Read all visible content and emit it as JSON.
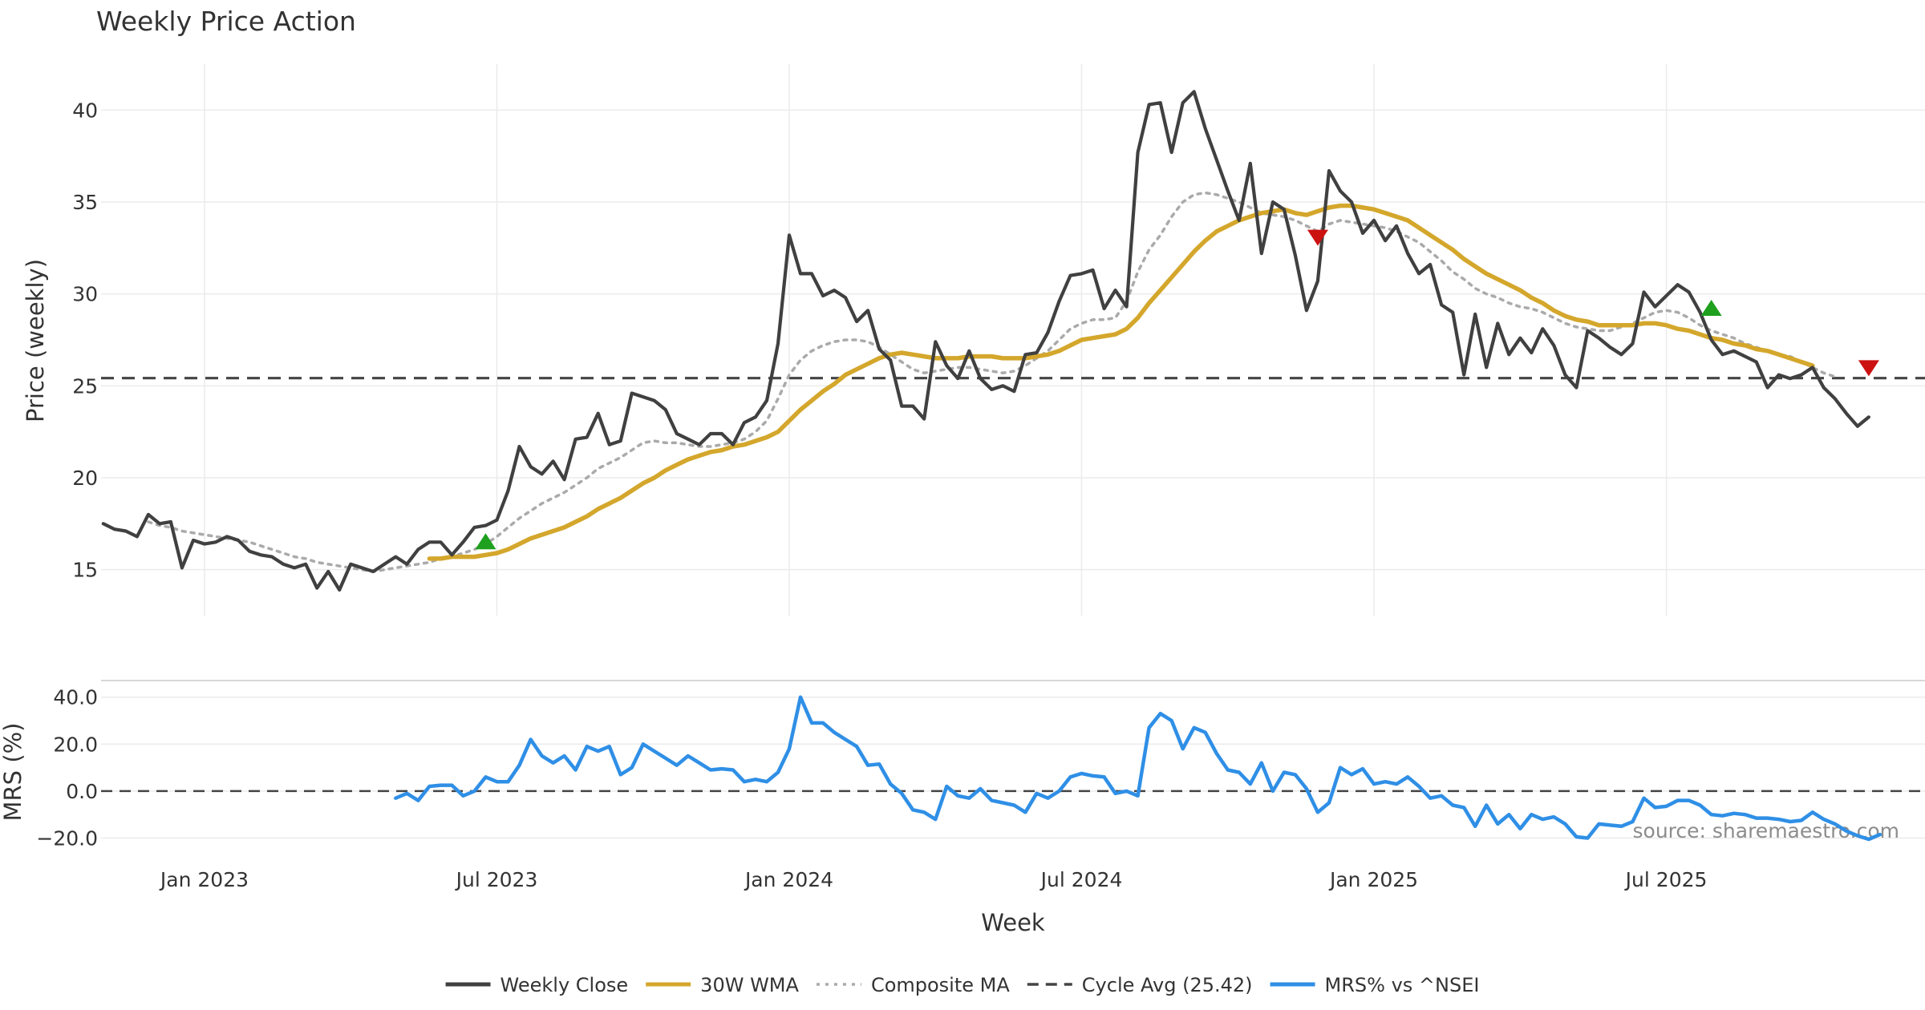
{
  "chart_data": [
    {
      "id": "price_panel",
      "type": "line",
      "title": "Weekly Price Action",
      "xlabel": "",
      "ylabel": "Price (weekly)",
      "ylim": [
        12.5,
        42.5
      ],
      "yticks": [
        15,
        20,
        25,
        30,
        35,
        40
      ],
      "cycle_avg": 25.42,
      "series": [
        {
          "name": "Weekly Close",
          "color": "#404040",
          "values": [
            17.5,
            17.2,
            17.1,
            16.8,
            18.0,
            17.5,
            17.6,
            15.1,
            16.6,
            16.4,
            16.5,
            16.8,
            16.6,
            16.0,
            15.8,
            15.7,
            15.3,
            15.1,
            15.3,
            14.0,
            14.9,
            13.9,
            15.3,
            15.1,
            14.9,
            15.3,
            15.7,
            15.3,
            16.1,
            16.5,
            16.5,
            15.8,
            16.5,
            17.3,
            17.4,
            17.7,
            19.3,
            21.7,
            20.6,
            20.2,
            20.9,
            19.9,
            22.1,
            22.2,
            23.5,
            21.8,
            22.0,
            24.6,
            24.4,
            24.2,
            23.7,
            22.4,
            22.1,
            21.8,
            22.4,
            22.4,
            21.8,
            23.0,
            23.3,
            24.2,
            27.3,
            33.2,
            31.1,
            31.1,
            29.9,
            30.2,
            29.8,
            28.5,
            29.1,
            27.0,
            26.4,
            23.9,
            23.9,
            23.2,
            27.4,
            26.1,
            25.4,
            26.9,
            25.4,
            24.8,
            25.0,
            24.7,
            26.7,
            26.8,
            27.9,
            29.6,
            31.0,
            31.1,
            31.3,
            29.2,
            30.2,
            29.3,
            37.7,
            40.3,
            40.4,
            37.7,
            40.4,
            41.0,
            39.0,
            37.3,
            35.6,
            34.0,
            37.1,
            32.2,
            35.0,
            34.6,
            32.1,
            29.1,
            30.7,
            36.7,
            35.6,
            35.0,
            33.3,
            34.0,
            32.9,
            33.7,
            32.2,
            31.1,
            31.6,
            29.4,
            29.0,
            25.6,
            28.9,
            26.0,
            28.4,
            26.7,
            27.6,
            26.8,
            28.1,
            27.2,
            25.6,
            24.9,
            28.0,
            27.6,
            27.1,
            26.7,
            27.3,
            30.1,
            29.3,
            29.9,
            30.5,
            30.1,
            29.0,
            27.5,
            26.7,
            26.9,
            26.6,
            26.3,
            24.9,
            25.6,
            25.4,
            25.6,
            26.0,
            24.9,
            24.3,
            23.5,
            22.8,
            23.3
          ]
        },
        {
          "name": "30W WMA",
          "color": "#d4a72c",
          "values": [
            null,
            null,
            null,
            null,
            null,
            null,
            null,
            null,
            null,
            null,
            null,
            null,
            null,
            null,
            null,
            null,
            null,
            null,
            null,
            null,
            null,
            null,
            null,
            null,
            null,
            null,
            null,
            null,
            null,
            15.6,
            15.6,
            15.7,
            15.7,
            15.7,
            15.8,
            15.9,
            16.1,
            16.4,
            16.7,
            16.9,
            17.1,
            17.3,
            17.6,
            17.9,
            18.3,
            18.6,
            18.9,
            19.3,
            19.7,
            20.0,
            20.4,
            20.7,
            21.0,
            21.2,
            21.4,
            21.5,
            21.7,
            21.8,
            22.0,
            22.2,
            22.5,
            23.1,
            23.7,
            24.2,
            24.7,
            25.1,
            25.6,
            25.9,
            26.2,
            26.5,
            26.7,
            26.8,
            26.7,
            26.6,
            26.5,
            26.5,
            26.5,
            26.6,
            26.6,
            26.6,
            26.5,
            26.5,
            26.5,
            26.6,
            26.7,
            26.9,
            27.2,
            27.5,
            27.6,
            27.7,
            27.8,
            28.1,
            28.7,
            29.5,
            30.2,
            30.9,
            31.6,
            32.3,
            32.9,
            33.4,
            33.7,
            34.0,
            34.2,
            34.4,
            34.5,
            34.6,
            34.4,
            34.3,
            34.5,
            34.7,
            34.8,
            34.8,
            34.7,
            34.6,
            34.4,
            34.2,
            34.0,
            33.6,
            33.2,
            32.8,
            32.4,
            31.9,
            31.5,
            31.1,
            30.8,
            30.5,
            30.2,
            29.8,
            29.5,
            29.1,
            28.8,
            28.6,
            28.5,
            28.3,
            28.3,
            28.3,
            28.3,
            28.4,
            28.4,
            28.3,
            28.1,
            28.0,
            27.8,
            27.6,
            27.5,
            27.3,
            27.2,
            27.0,
            26.9,
            26.7,
            26.5,
            26.3,
            26.1
          ]
        },
        {
          "name": "Composite MA",
          "color": "#aaaaaa",
          "values": [
            null,
            null,
            null,
            null,
            17.6,
            17.4,
            17.3,
            17.1,
            17.0,
            16.9,
            16.8,
            16.7,
            16.6,
            16.5,
            16.3,
            16.1,
            15.9,
            15.7,
            15.6,
            15.4,
            15.3,
            15.2,
            15.1,
            15.0,
            14.9,
            15.0,
            15.1,
            15.2,
            15.3,
            15.4,
            15.6,
            15.7,
            15.9,
            16.1,
            16.4,
            16.8,
            17.3,
            17.8,
            18.2,
            18.6,
            18.9,
            19.2,
            19.6,
            20.0,
            20.5,
            20.8,
            21.1,
            21.5,
            21.9,
            22.0,
            21.9,
            21.9,
            21.8,
            21.7,
            21.7,
            21.8,
            21.9,
            22.1,
            22.5,
            23.1,
            24.3,
            25.6,
            26.4,
            26.9,
            27.2,
            27.4,
            27.5,
            27.5,
            27.4,
            27.1,
            26.7,
            26.3,
            25.9,
            25.7,
            25.8,
            25.9,
            26.0,
            26.0,
            25.9,
            25.8,
            25.7,
            25.8,
            26.1,
            26.5,
            26.9,
            27.5,
            28.1,
            28.4,
            28.6,
            28.6,
            28.7,
            29.6,
            31.2,
            32.4,
            33.2,
            34.2,
            35.0,
            35.4,
            35.5,
            35.4,
            35.2,
            35.0,
            34.7,
            34.4,
            34.3,
            34.2,
            34.0,
            33.7,
            33.4,
            33.8,
            34.0,
            33.9,
            33.8,
            33.7,
            33.6,
            33.4,
            33.1,
            32.8,
            32.3,
            31.8,
            31.2,
            30.8,
            30.3,
            30.0,
            29.8,
            29.5,
            29.3,
            29.2,
            29.0,
            28.7,
            28.4,
            28.2,
            28.1,
            28.0,
            28.0,
            28.2,
            28.4,
            28.7,
            29.0,
            29.1,
            29.0,
            28.7,
            28.3,
            28.0,
            27.8,
            27.6,
            27.3,
            27.1,
            26.9,
            26.7,
            26.6,
            26.3,
            26.0,
            25.7,
            25.5
          ]
        }
      ],
      "signals": [
        {
          "type": "buy",
          "index": 34,
          "value": 16.5
        },
        {
          "type": "sell",
          "index": 108,
          "value": 33.1
        },
        {
          "type": "buy",
          "index": 143,
          "value": 29.2
        },
        {
          "type": "sell",
          "index": 157,
          "value": 26.0
        }
      ]
    },
    {
      "id": "mrs_panel",
      "type": "line",
      "title": "",
      "xlabel": "Week",
      "ylabel": "MRS (%)",
      "ylim": [
        -27,
        44
      ],
      "yticks": [
        "40.0",
        "20.0",
        "0.0",
        "−20.0"
      ],
      "ytick_values": [
        40,
        20,
        0,
        -20
      ],
      "zero_line": 0,
      "x_axis": {
        "start": "2022-11-07",
        "period": "week",
        "ticks": [
          {
            "label": "Jan 2023",
            "index": 9
          },
          {
            "label": "Jul 2023",
            "index": 35
          },
          {
            "label": "Jan 2024",
            "index": 61
          },
          {
            "label": "Jul 2024",
            "index": 87
          },
          {
            "label": "Jan 2025",
            "index": 113
          },
          {
            "label": "Jul 2025",
            "index": 139
          }
        ],
        "xlim": [
          -0.2,
          162
        ]
      },
      "series": [
        {
          "name": "MRS% vs ^NSEI",
          "color": "#2f8fe6",
          "values": [
            null,
            null,
            null,
            null,
            null,
            null,
            null,
            null,
            null,
            null,
            null,
            null,
            null,
            null,
            null,
            null,
            null,
            null,
            null,
            null,
            null,
            null,
            null,
            null,
            null,
            null,
            -3,
            -1,
            -4,
            2,
            2.5,
            2.5,
            -2,
            0,
            6,
            4,
            4,
            11,
            22,
            15,
            12,
            15,
            9,
            19,
            17,
            19,
            7,
            10,
            20,
            17,
            14,
            11,
            15,
            12,
            9,
            9.5,
            9,
            4,
            5,
            4,
            8,
            18,
            40,
            29,
            29,
            25,
            22,
            19,
            11,
            11.5,
            3,
            -1,
            -8,
            -9,
            -12,
            2,
            -2,
            -3,
            1,
            -4,
            -5,
            -6,
            -9,
            -1,
            -3,
            0,
            6,
            7.5,
            6.5,
            6,
            -1,
            0,
            -2,
            27,
            33,
            30,
            18,
            27,
            25,
            16,
            9,
            8,
            3,
            12,
            0,
            8,
            7,
            1,
            -9,
            -5,
            10,
            7,
            9.5,
            3,
            4,
            3,
            6,
            2,
            -3,
            -2,
            -6,
            -7,
            -15,
            -6,
            -14,
            -10,
            -16,
            -10,
            -12,
            -11,
            -14,
            -19.5,
            -20,
            -14,
            -14.5,
            -15,
            -13,
            -3,
            -7,
            -6.5,
            -4,
            -4,
            -6,
            -10,
            -10.5,
            -9.5,
            -10,
            -11.5,
            -11.5,
            -12,
            -13,
            -12.5,
            -9,
            -12,
            -14,
            -17,
            -19,
            -20.5,
            -18.5
          ]
        }
      ]
    }
  ],
  "legend": [
    {
      "label": "Weekly Close",
      "style": "solid",
      "color": "#404040"
    },
    {
      "label": "30W WMA",
      "style": "solid",
      "color": "#d4a72c"
    },
    {
      "label": "Composite MA",
      "style": "dotted",
      "color": "#aaaaaa"
    },
    {
      "label": "Cycle Avg (25.42)",
      "style": "dashed",
      "color": "#444444"
    },
    {
      "label": "MRS% vs ^NSEI",
      "style": "solid",
      "color": "#2f8fe6"
    }
  ],
  "source_note": "source: sharemaestro.com",
  "signal_colors": {
    "buy": "#1fa01f",
    "sell": "#cc1111"
  }
}
